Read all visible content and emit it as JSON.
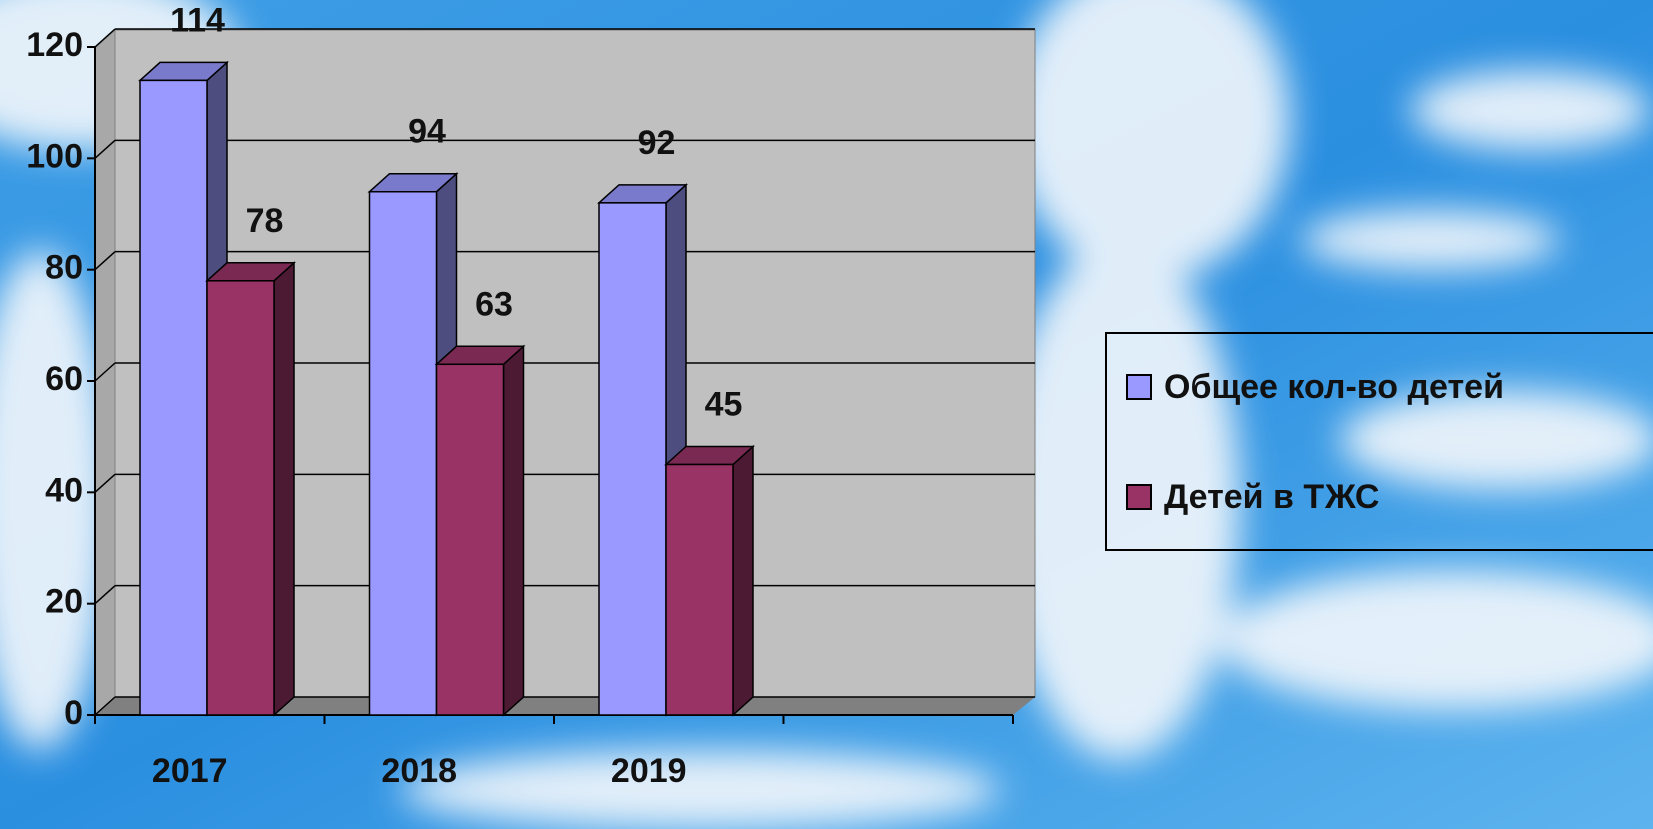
{
  "chart_data": {
    "type": "bar3d",
    "categories": [
      "2017",
      "2018",
      "2019",
      null
    ],
    "series": [
      {
        "name": "Общее кол-во детей",
        "color": "#9999ff",
        "values": [
          114,
          94,
          92,
          null
        ]
      },
      {
        "name": "Детей в ТЖС",
        "color": "#993366",
        "values": [
          78,
          63,
          45,
          null
        ]
      }
    ],
    "ylim": [
      0,
      120
    ],
    "yticks": [
      0,
      20,
      40,
      60,
      80,
      100,
      120
    ],
    "grid": true,
    "legend": "right"
  }
}
